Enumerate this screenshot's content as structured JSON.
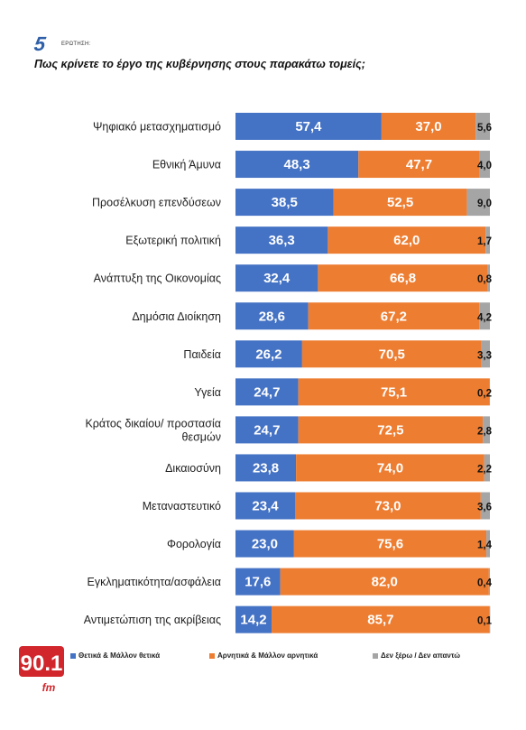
{
  "header": {
    "question_number": "5",
    "question_label": "ΕΡΩΤΗΣΗ:",
    "question_text": "Πως κρίνετε το έργο της κυβέρνησης στους παρακάτω τομείς;"
  },
  "logo": {
    "text": "90.1",
    "subtext": "fm",
    "color": "#d0262c"
  },
  "chart_data": {
    "type": "bar",
    "orientation": "horizontal",
    "stacked": true,
    "grid": false,
    "legend_position": "bottom",
    "xlim": [
      0,
      100
    ],
    "categories": [
      [
        "Ψηφιακό μετασχηματισμό"
      ],
      [
        "Εθνική Άμυνα"
      ],
      [
        "Προσέλκυση επενδύσεων"
      ],
      [
        "Εξωτερική πολιτική"
      ],
      [
        "Ανάπτυξη της Οικονομίας"
      ],
      [
        "Δημόσια Διοίκηση"
      ],
      [
        "Παιδεία"
      ],
      [
        "Υγεία"
      ],
      [
        "Κράτος δικαίου/ προστασία",
        "θεσμών"
      ],
      [
        "Δικαιοσύνη"
      ],
      [
        "Μεταναστευτικό"
      ],
      [
        "Φορολογία"
      ],
      [
        "Εγκληματικότητα/ασφάλεια"
      ],
      [
        "Αντιμετώπιση της ακρίβειας"
      ]
    ],
    "series": [
      {
        "name": "Θετικά & Μάλλον θετικά",
        "color": "#4472c4",
        "values": [
          57.4,
          48.3,
          38.5,
          36.3,
          32.4,
          28.6,
          26.2,
          24.7,
          24.7,
          23.8,
          23.4,
          23.0,
          17.6,
          14.2
        ],
        "labels": [
          "57,4",
          "48,3",
          "38,5",
          "36,3",
          "32,4",
          "28,6",
          "26,2",
          "24,7",
          "24,7",
          "23,8",
          "23,4",
          "23,0",
          "17,6",
          "14,2"
        ]
      },
      {
        "name": "Αρνητικά & Μάλλον αρνητικά",
        "color": "#ed7d31",
        "values": [
          37.0,
          47.7,
          52.5,
          62.0,
          66.8,
          67.2,
          70.5,
          75.1,
          72.5,
          74.0,
          73.0,
          75.6,
          82.0,
          85.7
        ],
        "labels": [
          "37,0",
          "47,7",
          "52,5",
          "62,0",
          "66,8",
          "67,2",
          "70,5",
          "75,1",
          "72,5",
          "74,0",
          "73,0",
          "75,6",
          "82,0",
          "85,7"
        ]
      },
      {
        "name": "Δεν ξέρω / Δεν απαντώ",
        "color": "#a5a5a5",
        "values": [
          5.6,
          4.0,
          9.0,
          1.7,
          0.8,
          4.2,
          3.3,
          0.2,
          2.8,
          2.2,
          3.6,
          1.4,
          0.4,
          0.1
        ],
        "labels": [
          "5,6",
          "4,0",
          "9,0",
          "1,7",
          "0,8",
          "4,2",
          "3,3",
          "0,2",
          "2,8",
          "2,2",
          "3,6",
          "1,4",
          "0,4",
          "0,1"
        ]
      }
    ]
  }
}
